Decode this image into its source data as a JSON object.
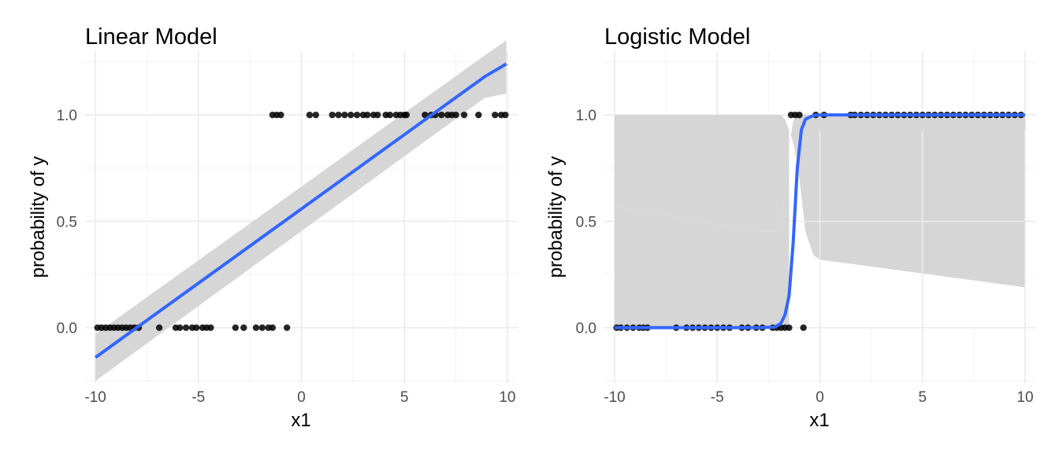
{
  "chart_data": [
    {
      "type": "scatter",
      "title": "Linear Model",
      "xlabel": "x1",
      "ylabel": "probability of y",
      "xlim": [
        -10.5,
        10.5
      ],
      "ylim": [
        -0.26,
        1.3
      ],
      "xticks": [
        -10,
        -5,
        0,
        5,
        10
      ],
      "xtick_labels": [
        "-10",
        "-5",
        "0",
        "5",
        "10"
      ],
      "yticks": [
        0.0,
        0.5,
        1.0
      ],
      "ytick_labels": [
        "0.0",
        "0.5",
        "1.0"
      ],
      "grid": true,
      "points": {
        "color": "#000000",
        "x": [
          -9.9,
          -9.7,
          -9.5,
          -9.3,
          -9.1,
          -8.9,
          -8.7,
          -8.5,
          -8.3,
          -8.1,
          -7.9,
          -6.9,
          -6.1,
          -5.9,
          -5.6,
          -5.3,
          -5.1,
          -4.8,
          -4.6,
          -4.4,
          -3.2,
          -2.8,
          -2.2,
          -1.9,
          -1.6,
          -1.4,
          -0.7,
          -1.4,
          -1.2,
          -1.0,
          0.4,
          0.7,
          1.5,
          1.8,
          2.1,
          2.4,
          2.7,
          3.0,
          3.2,
          3.5,
          3.7,
          4.1,
          4.3,
          4.6,
          4.8,
          5.0,
          5.1,
          6.0,
          6.3,
          6.5,
          6.8,
          7.1,
          7.3,
          7.5,
          7.9,
          8.6,
          9.4,
          9.7,
          9.9
        ],
        "y": [
          0,
          0,
          0,
          0,
          0,
          0,
          0,
          0,
          0,
          0,
          0,
          0,
          0,
          0,
          0,
          0,
          0,
          0,
          0,
          0,
          0,
          0,
          0,
          0,
          0,
          0,
          0,
          1,
          1,
          1,
          1,
          1,
          1,
          1,
          1,
          1,
          1,
          1,
          1,
          1,
          1,
          1,
          1,
          1,
          1,
          1,
          1,
          1,
          1,
          1,
          1,
          1,
          1,
          1,
          1,
          1,
          1,
          1,
          1
        ]
      },
      "fit": {
        "color": "#3366ff",
        "band_color": "#d6d6d6",
        "x": [
          -10.0,
          8.9,
          9.95
        ],
        "y": [
          -0.14,
          1.18,
          1.24
        ],
        "ymin": [
          -0.25,
          1.08,
          1.1
        ],
        "ymax": [
          -0.03,
          1.28,
          1.35
        ]
      }
    },
    {
      "type": "scatter",
      "title": "Logistic Model",
      "xlabel": "x1",
      "ylabel": "probability of y",
      "xlim": [
        -10.5,
        10.5
      ],
      "ylim": [
        -0.26,
        1.3
      ],
      "xticks": [
        -10,
        -5,
        0,
        5,
        10
      ],
      "xtick_labels": [
        "-10",
        "-5",
        "0",
        "5",
        "10"
      ],
      "yticks": [
        0.0,
        0.5,
        1.0
      ],
      "ytick_labels": [
        "0.0",
        "0.5",
        "1.0"
      ],
      "grid": true,
      "points": {
        "color": "#000000",
        "x": [
          -9.9,
          -9.7,
          -9.4,
          -9.1,
          -8.8,
          -8.6,
          -8.4,
          -7.0,
          -6.5,
          -6.2,
          -5.9,
          -5.6,
          -5.3,
          -5.0,
          -4.7,
          -4.4,
          -3.8,
          -3.5,
          -3.1,
          -2.8,
          -2.3,
          -2.1,
          -1.9,
          -1.7,
          -1.5,
          -0.8,
          -1.4,
          -1.2,
          -1.0,
          -0.2,
          0.2,
          1.5,
          1.7,
          2.0,
          2.3,
          2.6,
          2.9,
          3.2,
          3.5,
          3.8,
          4.1,
          4.4,
          4.7,
          5.0,
          5.3,
          5.6,
          5.9,
          6.2,
          6.5,
          6.8,
          7.1,
          7.4,
          7.7,
          8.0,
          8.3,
          8.6,
          8.9,
          9.2,
          9.5,
          9.8
        ],
        "y": [
          0,
          0,
          0,
          0,
          0,
          0,
          0,
          0,
          0,
          0,
          0,
          0,
          0,
          0,
          0,
          0,
          0,
          0,
          0,
          0,
          0,
          0,
          0,
          0,
          0,
          0,
          1,
          1,
          1,
          1,
          1,
          1,
          1,
          1,
          1,
          1,
          1,
          1,
          1,
          1,
          1,
          1,
          1,
          1,
          1,
          1,
          1,
          1,
          1,
          1,
          1,
          1,
          1,
          1,
          1,
          1,
          1,
          1,
          1,
          1
        ]
      },
      "fit": {
        "color": "#3366ff",
        "band_color": "#d6d6d6",
        "x": [
          -10.0,
          -3.0,
          -2.2,
          -1.9,
          -1.7,
          -1.5,
          -1.3,
          -1.1,
          -0.9,
          -0.7,
          -0.3,
          0.0,
          10.0
        ],
        "y": [
          0.0,
          0.0,
          0.003,
          0.02,
          0.06,
          0.15,
          0.4,
          0.75,
          0.93,
          0.98,
          0.998,
          1.0,
          1.0
        ],
        "ymin": [
          0.0,
          0.0,
          0.0,
          0.0,
          0.0,
          0.0,
          0.0,
          0.0,
          0.0,
          0.0,
          0.0,
          0.0,
          0.0
        ],
        "ymax": [
          0.57,
          0.45,
          0.45,
          0.5,
          0.63,
          0.85,
          0.97,
          1.0,
          1.0,
          1.0,
          1.0,
          1.0,
          1.0
        ],
        "ymin_upper": [
          1.0,
          1.0,
          1.0,
          1.0,
          0.98,
          0.93,
          0.87,
          0.78,
          0.62,
          0.45,
          0.34,
          0.32,
          0.19
        ]
      }
    }
  ]
}
